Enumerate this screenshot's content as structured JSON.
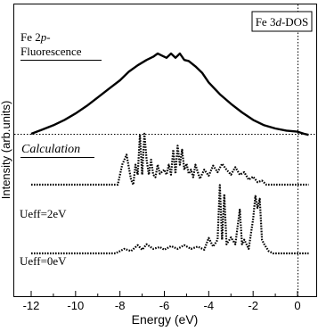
{
  "chart_data": {
    "type": "line",
    "xlabel": "Energy  (eV)",
    "ylabel": "Intensity (arb.units)",
    "xlim": [
      -12,
      1
    ],
    "x_ticks": [
      -12,
      -10,
      -8,
      -6,
      -4,
      -2,
      0
    ],
    "x_tick_labels": [
      "-12",
      "-10",
      "-8",
      "-6",
      "-4",
      "-2",
      "0"
    ],
    "grid": false,
    "y_ticks_shown": false,
    "legend": {
      "text_main": "Fe 3",
      "text_italic": "d",
      "text_tail": "-DOS",
      "placement": "top-right"
    },
    "annotations": {
      "exp_label_main": "Fe 2",
      "exp_label_italic": "p",
      "exp_label_tail": "-",
      "exp_label_line2": "Fluorescence",
      "calc_label": "Calculation",
      "ueff2_label": "Ueff=2eV",
      "ueff0_label": "Ueff=0eV"
    },
    "series": [
      {
        "label_key": "exp",
        "style": "solid",
        "offset": 0,
        "points": [
          [
            -12.0,
            0.0
          ],
          [
            -11.5,
            0.8
          ],
          [
            -11.0,
            1.6
          ],
          [
            -10.5,
            2.6
          ],
          [
            -10.0,
            3.8
          ],
          [
            -9.5,
            5.2
          ],
          [
            -9.0,
            6.8
          ],
          [
            -8.5,
            8.4
          ],
          [
            -8.0,
            10.0
          ],
          [
            -7.6,
            11.6
          ],
          [
            -7.2,
            12.8
          ],
          [
            -6.8,
            13.8
          ],
          [
            -6.5,
            14.4
          ],
          [
            -6.3,
            15.0
          ],
          [
            -6.1,
            14.6
          ],
          [
            -5.9,
            14.2
          ],
          [
            -5.7,
            15.0
          ],
          [
            -5.5,
            14.2
          ],
          [
            -5.3,
            15.0
          ],
          [
            -5.1,
            13.8
          ],
          [
            -4.9,
            13.6
          ],
          [
            -4.6,
            12.6
          ],
          [
            -4.3,
            11.4
          ],
          [
            -4.0,
            9.6
          ],
          [
            -3.5,
            7.4
          ],
          [
            -3.0,
            5.6
          ],
          [
            -2.5,
            4.0
          ],
          [
            -2.0,
            2.6
          ],
          [
            -1.5,
            1.6
          ],
          [
            -1.0,
            1.0
          ],
          [
            -0.5,
            0.6
          ],
          [
            0.0,
            0.4
          ],
          [
            0.3,
            0.0
          ],
          [
            0.5,
            -0.2
          ]
        ]
      },
      {
        "label_key": "ueff2",
        "style": "dotted",
        "offset": 0,
        "points": [
          [
            -12.0,
            0.0
          ],
          [
            -8.1,
            0.0
          ],
          [
            -7.9,
            4.0
          ],
          [
            -7.7,
            6.0
          ],
          [
            -7.5,
            1.0
          ],
          [
            -7.4,
            0.0
          ],
          [
            -7.3,
            4.0
          ],
          [
            -7.2,
            2.0
          ],
          [
            -7.1,
            10.0
          ],
          [
            -7.0,
            2.0
          ],
          [
            -6.9,
            10.2
          ],
          [
            -6.8,
            5.0
          ],
          [
            -6.7,
            2.0
          ],
          [
            -6.6,
            5.0
          ],
          [
            -6.5,
            2.0
          ],
          [
            -6.4,
            1.5
          ],
          [
            -6.3,
            4.0
          ],
          [
            -6.2,
            2.2
          ],
          [
            -6.0,
            3.0
          ],
          [
            -5.9,
            2.0
          ],
          [
            -5.8,
            4.0
          ],
          [
            -5.7,
            2.0
          ],
          [
            -5.6,
            7.0
          ],
          [
            -5.5,
            2.2
          ],
          [
            -5.4,
            7.8
          ],
          [
            -5.3,
            4.0
          ],
          [
            -5.2,
            7.0
          ],
          [
            -5.1,
            3.0
          ],
          [
            -5.0,
            4.2
          ],
          [
            -4.9,
            2.2
          ],
          [
            -4.8,
            3.0
          ],
          [
            -4.7,
            1.5
          ],
          [
            -4.6,
            4.0
          ],
          [
            -4.4,
            1.2
          ],
          [
            -4.2,
            3.0
          ],
          [
            -4.0,
            1.8
          ],
          [
            -3.8,
            3.8
          ],
          [
            -3.6,
            2.5
          ],
          [
            -3.4,
            4.2
          ],
          [
            -3.2,
            3.0
          ],
          [
            -3.0,
            2.0
          ],
          [
            -2.8,
            3.5
          ],
          [
            -2.6,
            2.0
          ],
          [
            -2.4,
            2.5
          ],
          [
            -2.2,
            1.0
          ],
          [
            -2.0,
            1.6
          ],
          [
            -1.8,
            0.5
          ],
          [
            -1.6,
            0.8
          ],
          [
            -1.4,
            0.0
          ],
          [
            0.5,
            0.0
          ]
        ]
      },
      {
        "label_key": "ueff0",
        "style": "dotted",
        "offset": 0,
        "points": [
          [
            -12.0,
            0.0
          ],
          [
            -8.2,
            0.0
          ],
          [
            -7.8,
            1.0
          ],
          [
            -7.5,
            0.5
          ],
          [
            -7.2,
            1.8
          ],
          [
            -7.0,
            0.8
          ],
          [
            -6.8,
            2.0
          ],
          [
            -6.5,
            1.0
          ],
          [
            -6.2,
            1.4
          ],
          [
            -6.0,
            0.8
          ],
          [
            -5.7,
            1.6
          ],
          [
            -5.4,
            1.0
          ],
          [
            -5.1,
            1.8
          ],
          [
            -4.8,
            1.0
          ],
          [
            -4.5,
            1.5
          ],
          [
            -4.2,
            0.8
          ],
          [
            -4.0,
            3.4
          ],
          [
            -3.8,
            1.5
          ],
          [
            -3.6,
            3.0
          ],
          [
            -3.5,
            15.0
          ],
          [
            -3.4,
            3.0
          ],
          [
            -3.3,
            13.0
          ],
          [
            -3.2,
            2.0
          ],
          [
            -3.0,
            3.5
          ],
          [
            -2.8,
            2.0
          ],
          [
            -2.6,
            9.6
          ],
          [
            -2.5,
            2.0
          ],
          [
            -2.4,
            3.0
          ],
          [
            -2.2,
            1.0
          ],
          [
            -2.0,
            7.6
          ],
          [
            -1.9,
            12.6
          ],
          [
            -1.8,
            10.0
          ],
          [
            -1.7,
            12.0
          ],
          [
            -1.6,
            3.0
          ],
          [
            -1.5,
            2.0
          ],
          [
            -1.3,
            0.5
          ],
          [
            -1.1,
            0.0
          ],
          [
            0.5,
            0.0
          ]
        ]
      }
    ]
  }
}
